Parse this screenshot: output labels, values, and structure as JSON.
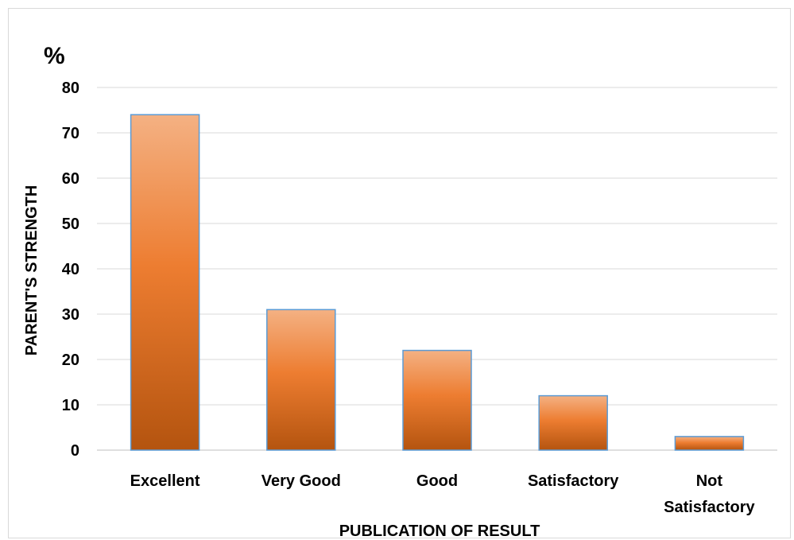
{
  "chart_data": {
    "type": "bar",
    "categories": [
      "Excellent",
      "Very Good",
      "Good",
      "Satisfactory",
      "Not Satisfactory"
    ],
    "category_lines": [
      [
        "Excellent"
      ],
      [
        "Very Good"
      ],
      [
        "Good"
      ],
      [
        "Satisfactory"
      ],
      [
        "Not",
        "Satisfactory"
      ]
    ],
    "values": [
      74,
      31,
      22,
      12,
      3
    ],
    "unit": "%",
    "xlabel": "PUBLICATION OF RESULT",
    "ylabel": "PARENT'S STRENGTH",
    "ylim": [
      0,
      80
    ],
    "yticks": [
      0,
      10,
      20,
      30,
      40,
      50,
      60,
      70,
      80
    ],
    "grid": true,
    "bar_colors": {
      "top": "#f4b183",
      "mid": "#ed7d31",
      "bottom": "#b4540f",
      "edge": "#5b9bd5"
    }
  }
}
